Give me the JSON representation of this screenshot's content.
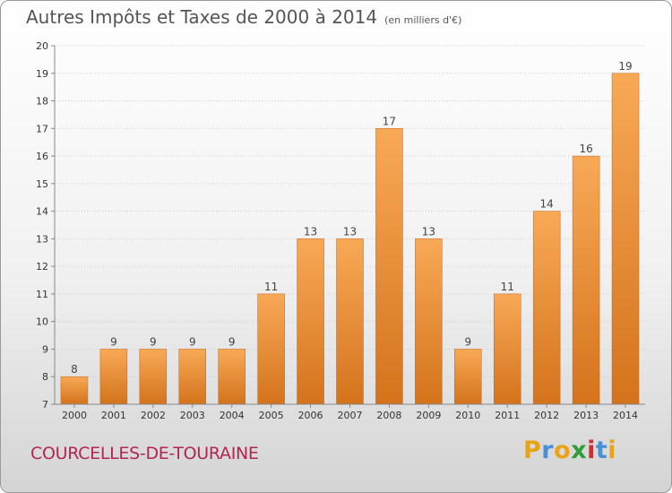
{
  "title": "Autres Impôts et Taxes de 2000 à 2014",
  "unit": "(en milliers d'€)",
  "commune": "COURCELLES-DE-TOURAINE",
  "logo": {
    "letters": [
      "P",
      "r",
      "o",
      "x",
      "i",
      "t",
      "i"
    ],
    "colors": [
      "#e8a317",
      "#4a90d9",
      "#e8a317",
      "#2e9e3a",
      "#d62b2b",
      "#4a90d9",
      "#e8a317"
    ]
  },
  "colors": {
    "bar_top": "#f8a956",
    "bar_bottom": "#d4731c",
    "grid": "#d0d0d0",
    "axis": "#888888"
  },
  "chart_data": {
    "type": "bar",
    "categories": [
      "2000",
      "2001",
      "2002",
      "2003",
      "2004",
      "2005",
      "2006",
      "2007",
      "2008",
      "2009",
      "2010",
      "2011",
      "2012",
      "2013",
      "2014"
    ],
    "values": [
      8,
      9,
      9,
      9,
      9,
      11,
      13,
      13,
      17,
      13,
      9,
      11,
      14,
      16,
      19
    ],
    "ylim": [
      7,
      20
    ],
    "yticks": [
      7,
      8,
      9,
      10,
      11,
      12,
      13,
      14,
      15,
      16,
      17,
      18,
      19,
      20
    ],
    "grid": true
  }
}
